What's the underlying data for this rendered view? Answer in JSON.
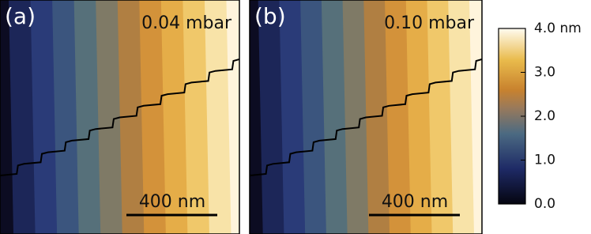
{
  "panels": [
    {
      "label": "(a)",
      "pressure": "0.04 mbar",
      "scale_bar": "400 nm"
    },
    {
      "label": "(b)",
      "pressure": "0.10 mbar",
      "scale_bar": "400 nm"
    }
  ],
  "colorbar": {
    "lim": [
      0,
      4
    ],
    "ticks": [
      {
        "value": 4,
        "label": "4.0 nm"
      },
      {
        "value": 3,
        "label": "3.0"
      },
      {
        "value": 2,
        "label": "2.0"
      },
      {
        "value": 1,
        "label": "1.0"
      },
      {
        "value": 0,
        "label": "0.0"
      }
    ]
  }
}
